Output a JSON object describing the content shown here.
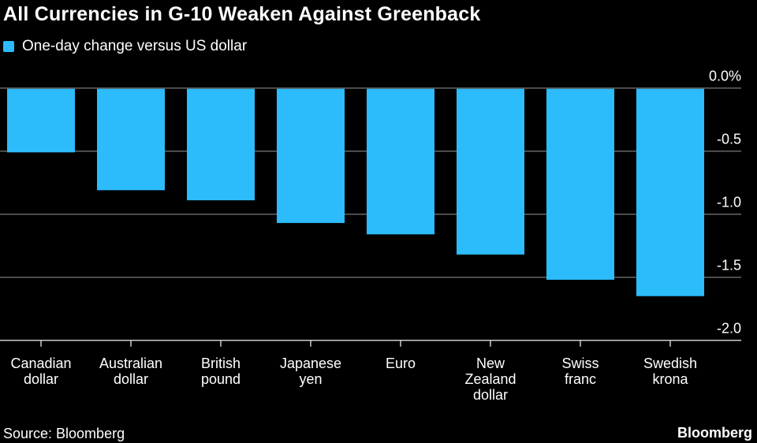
{
  "chart_data": {
    "type": "bar",
    "title": "All Currencies in G-10 Weaken Against Greenback",
    "legend": [
      "One-day change versus US dollar"
    ],
    "legend_placement": "top-left",
    "categories": [
      [
        "Canadian",
        "dollar"
      ],
      [
        "Australian",
        "dollar"
      ],
      [
        "British",
        "pound"
      ],
      [
        "Japanese",
        "yen"
      ],
      [
        "Euro"
      ],
      [
        "New",
        "Zealand",
        "dollar"
      ],
      [
        "Swiss",
        "franc"
      ],
      [
        "Swedish",
        "krona"
      ]
    ],
    "values": [
      -0.51,
      -0.81,
      -0.89,
      -1.07,
      -1.16,
      -1.32,
      -1.52,
      -1.65
    ],
    "ylim": [
      -2.0,
      0.0
    ],
    "yticks": [
      0.0,
      -0.5,
      -1.0,
      -1.5,
      -2.0
    ],
    "ytick_labels": [
      "0.0%",
      "-0.5",
      "-1.0",
      "-1.5",
      "-2.0"
    ],
    "y_axis_side": "right",
    "grid": true,
    "xlabel": "",
    "ylabel": "",
    "bar_color": "#2cbcfc"
  },
  "footer": {
    "source": "Source: Bloomberg",
    "brand": "Bloomberg"
  }
}
